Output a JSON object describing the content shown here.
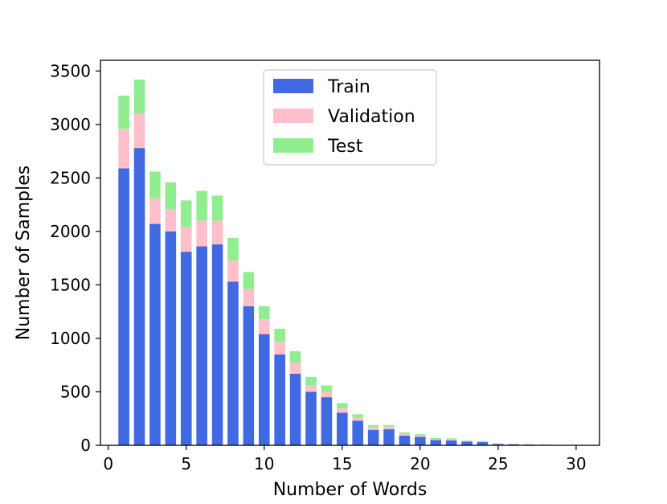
{
  "chart_data": {
    "type": "bar",
    "stacked": true,
    "xlabel": "Number of Words",
    "ylabel": "Number of Samples",
    "xlim": [
      -0.5,
      31.5
    ],
    "ylim": [
      0,
      3600
    ],
    "xticks": [
      0,
      5,
      10,
      15,
      20,
      25,
      30
    ],
    "yticks": [
      0,
      500,
      1000,
      1500,
      2000,
      2500,
      3000,
      3500
    ],
    "grid": false,
    "legend_position": "top-center",
    "x": [
      1,
      2,
      3,
      4,
      5,
      6,
      7,
      8,
      9,
      10,
      11,
      12,
      13,
      14,
      15,
      16,
      17,
      18,
      19,
      20,
      21,
      22,
      23,
      24,
      25,
      26,
      27,
      28,
      29,
      30
    ],
    "series": [
      {
        "name": "Train",
        "color": "#4169e1",
        "values": [
          2590,
          2780,
          2070,
          2000,
          1810,
          1860,
          1880,
          1530,
          1300,
          1040,
          850,
          670,
          500,
          450,
          305,
          230,
          145,
          150,
          90,
          80,
          50,
          45,
          35,
          30,
          12,
          10,
          7,
          5,
          3,
          2
        ]
      },
      {
        "name": "Validation",
        "color": "#ffc0cb",
        "values": [
          370,
          320,
          240,
          210,
          230,
          240,
          220,
          200,
          160,
          140,
          120,
          100,
          60,
          50,
          40,
          30,
          25,
          25,
          15,
          15,
          10,
          10,
          5,
          5,
          3,
          3,
          2,
          2,
          1,
          1
        ]
      },
      {
        "name": "Test",
        "color": "#90ee90",
        "values": [
          310,
          320,
          250,
          250,
          250,
          280,
          235,
          210,
          160,
          120,
          120,
          110,
          80,
          60,
          50,
          30,
          20,
          15,
          15,
          10,
          10,
          10,
          5,
          5,
          3,
          2,
          2,
          2,
          1,
          1
        ]
      }
    ]
  }
}
